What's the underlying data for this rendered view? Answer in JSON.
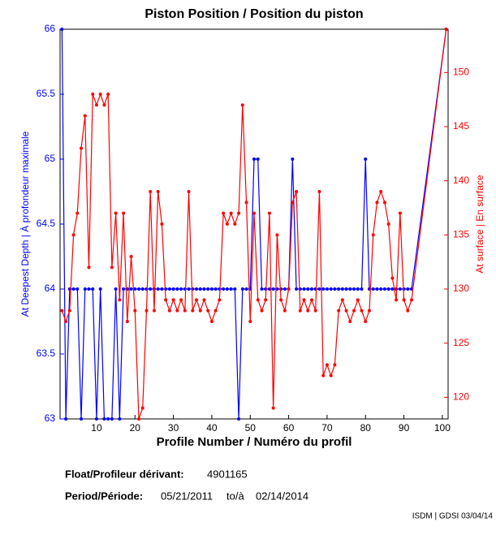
{
  "chart_data": {
    "type": "line",
    "title": "Piston Position / Position du piston",
    "x_label": "Profile Number / Numéro du profil",
    "y_label": "At Deepest Depth | À profondeur maximale",
    "y2_label": "At surface | En surface",
    "x": [
      1,
      2,
      3,
      4,
      5,
      6,
      7,
      8,
      9,
      10,
      11,
      12,
      13,
      14,
      15,
      16,
      17,
      18,
      19,
      20,
      21,
      22,
      23,
      24,
      25,
      26,
      27,
      28,
      29,
      30,
      31,
      32,
      33,
      34,
      35,
      36,
      37,
      38,
      39,
      40,
      41,
      42,
      43,
      44,
      45,
      46,
      47,
      48,
      49,
      50,
      51,
      52,
      53,
      54,
      55,
      56,
      57,
      58,
      59,
      60,
      61,
      62,
      63,
      64,
      65,
      66,
      67,
      68,
      69,
      70,
      71,
      72,
      73,
      74,
      75,
      76,
      77,
      78,
      79,
      80,
      81,
      82,
      83,
      84,
      85,
      86,
      87,
      88,
      89,
      90,
      91,
      92,
      101
    ],
    "series": [
      {
        "name": "At Deepest Depth",
        "color": "#0000ff",
        "values": [
          66,
          63,
          64,
          64,
          64,
          63,
          64,
          64,
          64,
          63,
          64,
          63,
          63,
          63,
          64,
          63,
          64,
          64,
          64,
          64,
          64,
          64,
          64,
          64,
          64,
          64,
          64,
          64,
          64,
          64,
          64,
          64,
          64,
          64,
          64,
          64,
          64,
          64,
          64,
          64,
          64,
          64,
          64,
          64,
          64,
          64,
          63,
          64,
          64,
          64,
          65,
          65,
          64,
          64,
          64,
          64,
          64,
          64,
          64,
          64,
          65,
          64,
          64,
          64,
          64,
          64,
          64,
          64,
          64,
          64,
          64,
          64,
          64,
          64,
          64,
          64,
          64,
          64,
          64,
          65,
          64,
          64,
          64,
          64,
          64,
          64,
          64,
          64,
          64,
          64,
          64,
          64,
          66
        ]
      },
      {
        "name": "At surface",
        "color": "#ff0000",
        "axis": "y2",
        "values": [
          128,
          127,
          128,
          135,
          137,
          143,
          146,
          132,
          148,
          147,
          148,
          147,
          148,
          132,
          137,
          129,
          137,
          127,
          133,
          128,
          118,
          119,
          128,
          139,
          128,
          139,
          136,
          129,
          128,
          129,
          128,
          129,
          128,
          139,
          128,
          129,
          128,
          129,
          128,
          127,
          128,
          129,
          137,
          136,
          137,
          136,
          137,
          147,
          138,
          127,
          137,
          129,
          128,
          129,
          137,
          119,
          135,
          129,
          128,
          130,
          138,
          139,
          128,
          129,
          128,
          129,
          128,
          139,
          122,
          123,
          122,
          123,
          128,
          129,
          128,
          127,
          128,
          129,
          128,
          127,
          128,
          135,
          138,
          139,
          138,
          136,
          131,
          129,
          137,
          129,
          128,
          129,
          154
        ]
      }
    ],
    "xlim": [
      0.5,
      101.5
    ],
    "xticks": [
      10,
      20,
      30,
      40,
      50,
      60,
      70,
      80,
      90,
      100
    ],
    "ylim": [
      63,
      66
    ],
    "yticks": [
      63,
      63.5,
      64,
      64.5,
      65,
      65.5,
      66
    ],
    "y2lim": [
      118,
      154
    ],
    "y2ticks": [
      120,
      125,
      130,
      135,
      140,
      145,
      150
    ]
  },
  "footer": {
    "float_label": "Float/Profileur dérivant:",
    "float_id": "4901165",
    "period_label": "Period/Période:",
    "start": "05/21/2011",
    "to": "to/à",
    "end": "02/14/2014",
    "credit": "ISDM | GDSI 03/04/14"
  }
}
